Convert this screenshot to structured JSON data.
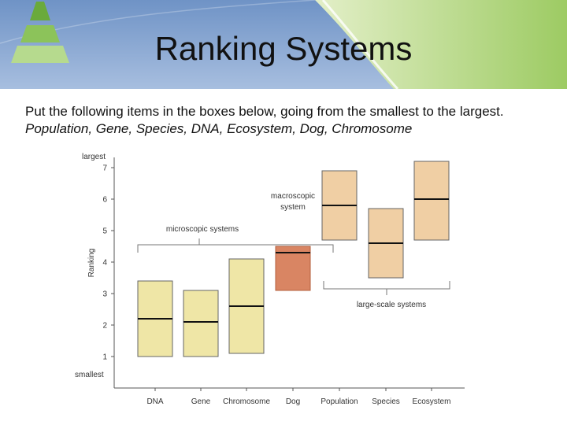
{
  "slide": {
    "title": "Ranking Systems",
    "instruction": "Put the following items in the boxes below, going from the smallest to the largest.",
    "items_list": "Population, Gene, Species, DNA, Ecosystem, Dog, Chromosome"
  },
  "colors": {
    "banner_blue": "#7fa0cc",
    "banner_green": "#b9d98c",
    "micro_fill": "#efe6a6",
    "macro_fill": "#d98563",
    "large_fill": "#f0cfa4",
    "axis": "#555555"
  },
  "chart_data": {
    "type": "bar",
    "ylabel": "Ranking",
    "y_top_label": "largest",
    "y_bottom_label": "smallest",
    "ylim": [
      0,
      7.5
    ],
    "yticks": [
      "1",
      "2",
      "3",
      "4",
      "5",
      "6",
      "7"
    ],
    "categories": [
      "DNA",
      "Gene",
      "Chromosome",
      "Dog",
      "Population",
      "Species",
      "Ecosystem"
    ],
    "ranges": [
      {
        "low": 1.0,
        "high": 3.4,
        "mid": 2.2,
        "group": "micro"
      },
      {
        "low": 1.0,
        "high": 3.1,
        "mid": 2.1,
        "group": "micro"
      },
      {
        "low": 1.1,
        "high": 4.1,
        "mid": 2.6,
        "group": "micro"
      },
      {
        "low": 3.1,
        "high": 4.5,
        "mid": 4.3,
        "group": "macro"
      },
      {
        "low": 4.7,
        "high": 6.9,
        "mid": 5.8,
        "group": "large"
      },
      {
        "low": 3.5,
        "high": 5.7,
        "mid": 4.6,
        "group": "large"
      },
      {
        "low": 4.7,
        "high": 7.2,
        "mid": 6.0,
        "group": "large"
      }
    ],
    "annotations": {
      "micro": "microscopic systems",
      "macro_line1": "macroscopic",
      "macro_line2": "system",
      "large": "large-scale systems"
    }
  }
}
